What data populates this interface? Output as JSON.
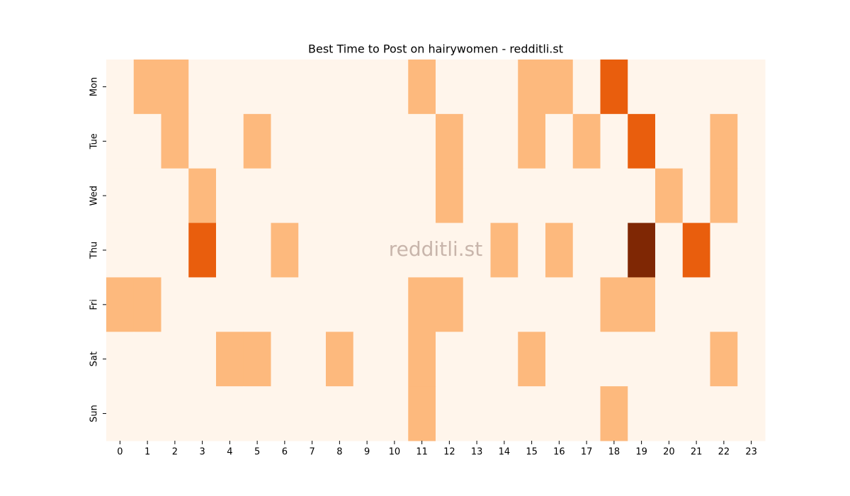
{
  "chart_data": {
    "type": "heatmap",
    "title": "Best Time to Post on hairywomen - redditli.st",
    "watermark": "redditli.st",
    "x_categories": [
      "0",
      "1",
      "2",
      "3",
      "4",
      "5",
      "6",
      "7",
      "8",
      "9",
      "10",
      "11",
      "12",
      "13",
      "14",
      "15",
      "16",
      "17",
      "18",
      "19",
      "20",
      "21",
      "22",
      "23"
    ],
    "y_categories": [
      "Mon",
      "Tue",
      "Wed",
      "Thu",
      "Fri",
      "Sat",
      "Sun"
    ],
    "values": [
      [
        0,
        1,
        1,
        0,
        0,
        0,
        0,
        0,
        0,
        0,
        0,
        1,
        0,
        0,
        0,
        1,
        1,
        0,
        2,
        0,
        0,
        0,
        0,
        0
      ],
      [
        0,
        0,
        1,
        0,
        0,
        1,
        0,
        0,
        0,
        0,
        0,
        0,
        1,
        0,
        0,
        1,
        0,
        1,
        0,
        2,
        0,
        0,
        1,
        0
      ],
      [
        0,
        0,
        0,
        1,
        0,
        0,
        0,
        0,
        0,
        0,
        0,
        0,
        1,
        0,
        0,
        0,
        0,
        0,
        0,
        0,
        1,
        0,
        1,
        0
      ],
      [
        0,
        0,
        0,
        2,
        0,
        0,
        1,
        0,
        0,
        0,
        0,
        0,
        0,
        0,
        1,
        0,
        1,
        0,
        0,
        3,
        0,
        2,
        0,
        0
      ],
      [
        1,
        1,
        0,
        0,
        0,
        0,
        0,
        0,
        0,
        0,
        0,
        1,
        1,
        0,
        0,
        0,
        0,
        0,
        1,
        1,
        0,
        0,
        0,
        0
      ],
      [
        0,
        0,
        0,
        0,
        1,
        1,
        0,
        0,
        1,
        0,
        0,
        1,
        0,
        0,
        0,
        1,
        0,
        0,
        0,
        0,
        0,
        0,
        1,
        0
      ],
      [
        0,
        0,
        0,
        0,
        0,
        0,
        0,
        0,
        0,
        0,
        0,
        1,
        0,
        0,
        0,
        0,
        0,
        0,
        1,
        0,
        0,
        0,
        0,
        0
      ]
    ],
    "vlim": [
      0,
      3
    ],
    "colors": [
      "#fff5eb",
      "#fdb97d",
      "#e95e0d",
      "#7f2704"
    ]
  }
}
